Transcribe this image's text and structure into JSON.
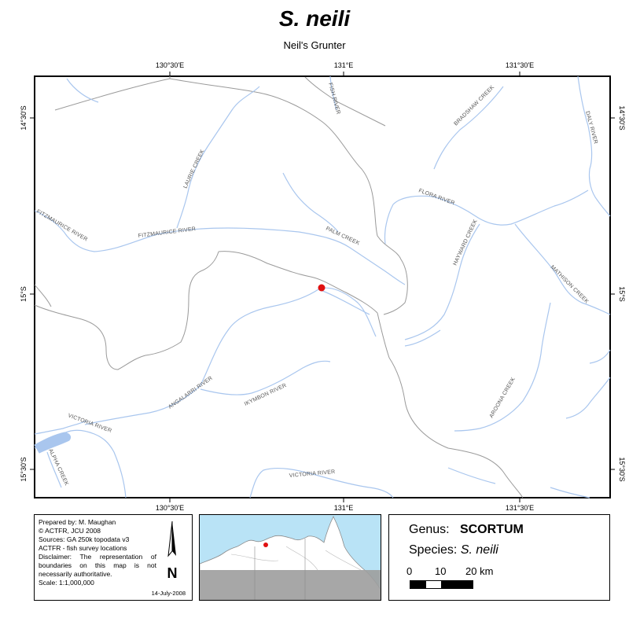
{
  "title": "S. neili",
  "subtitle": "Neil's Grunter",
  "map": {
    "coords_top": [
      "130°30'E",
      "131°E",
      "131°30'E"
    ],
    "coords_bottom": [
      "130°30'E",
      "131°E",
      "131°30'E"
    ],
    "coords_left": [
      "14°30'S",
      "15°S",
      "15°30'S"
    ],
    "coords_right": [
      "14°30'S",
      "15°S",
      "15°30'S"
    ],
    "river_labels": {
      "fish_river": "FISH RIVER",
      "bradshaw_creek": "BRADSHAW CREEK",
      "daly_river": "DALY RIVER",
      "laurie_creek": "LAURIE CREEK",
      "flora_river": "FLORA RIVER",
      "fitzmaurice_river_west": "FITZMAURICE RIVER",
      "fitzmaurice_river": "FITZMAURICE RIVER",
      "palm_creek": "PALM CREEK",
      "hayward_creek": "HAYWARD CREEK",
      "mathison_creek": "MATHISON CREEK",
      "angalarri_river": "ANGALARRI RIVER",
      "ikymbon_river": "IKYMBON RIVER",
      "aroona_creek": "AROONA CREEK",
      "victoria_river_west": "VICTORIA RIVER",
      "alpha_creek": "ALPHA CREEK",
      "victoria_river_south": "VICTORIA RIVER"
    },
    "colors": {
      "river": "#a9c6ee",
      "boundary": "#9a9a9a",
      "record": "#e01010"
    }
  },
  "info": {
    "lines": [
      "Prepared by: M. Maughan",
      "© ACTFR, JCU 2008",
      "Sources: GA 250k topodata v3",
      "ACTFR - fish survey locations",
      "Disclaimer: The representation of boundaries on this map is not necessarily authoritative.",
      "Scale: 1:1,000,000"
    ],
    "date": "14-July-2008",
    "north_letter": "N"
  },
  "legend": {
    "genus_label": "Genus:",
    "genus_value": "SCORTUM",
    "species_label": "Species:",
    "species_value": "S. neili",
    "scale_ticks": [
      "0",
      "10",
      "20 km"
    ]
  }
}
